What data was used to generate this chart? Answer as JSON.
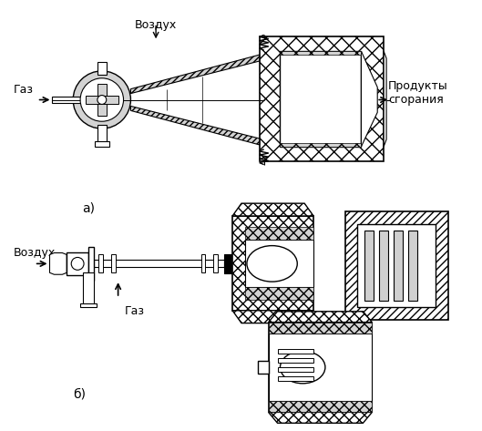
{
  "bg_color": "#ffffff",
  "line_color": "#000000",
  "label_a": "а)",
  "label_b": "б)",
  "text_vozduh_a": "Воздух",
  "text_gaz_a": "Газ",
  "text_produkty": "Продукты\nсгорания",
  "text_vozduh_b": "Воздух",
  "text_gaz_b": "Газ",
  "figsize": [
    5.29,
    4.73
  ],
  "dpi": 100
}
